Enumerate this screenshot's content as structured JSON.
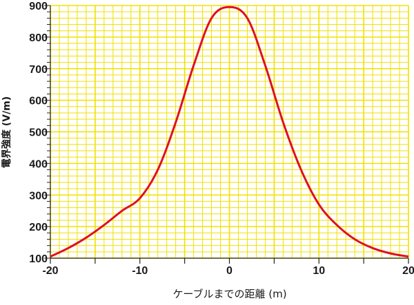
{
  "chart_data": {
    "type": "line",
    "xlabel": "ケーブルまでの距離 (m)",
    "ylabel": "電界強度 (V/m)",
    "xlim": [
      -20,
      20
    ],
    "ylim": [
      100,
      900
    ],
    "x_ticks": [
      -20,
      -10,
      0,
      10,
      20
    ],
    "y_ticks": [
      100,
      200,
      300,
      400,
      500,
      600,
      700,
      800,
      900
    ],
    "x_tick_labels": [
      "-20",
      "-10",
      "0",
      "10",
      "20"
    ],
    "y_tick_labels": [
      "100",
      "200",
      "300",
      "400",
      "500",
      "600",
      "700",
      "800",
      "900"
    ],
    "grid": true,
    "grid_color": "#f0e000",
    "line_color": "#e0101e",
    "series": [
      {
        "x": [
          -20,
          -18,
          -16,
          -14,
          -12,
          -10,
          -8,
          -6,
          -4,
          -2,
          0,
          2,
          4,
          6,
          8,
          10,
          12,
          14,
          16,
          18,
          20
        ],
        "values": [
          105,
          132,
          165,
          205,
          250,
          290,
          380,
          530,
          710,
          860,
          895,
          860,
          710,
          530,
          380,
          270,
          205,
          160,
          132,
          115,
          105
        ]
      }
    ]
  }
}
